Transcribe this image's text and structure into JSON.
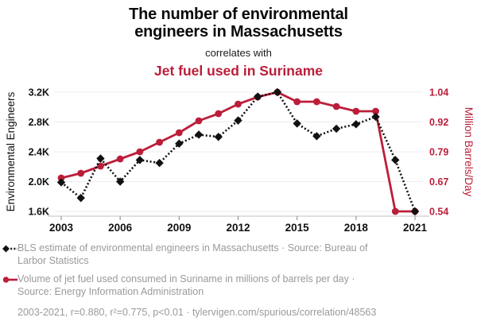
{
  "header": {
    "title_line1": "The number of environmental",
    "title_line2": "engineers in Massachusetts",
    "connector": "correlates with",
    "subtitle": "Jet fuel used in Suriname"
  },
  "colors": {
    "accent_red": "#bb1e3a",
    "series_black": "#111111",
    "legend_gray": "#9a9a9a",
    "grid": "#ededed",
    "axis_line": "#cccccc",
    "tick_mark": "#999999"
  },
  "chart_data": {
    "type": "line",
    "x": [
      2003,
      2004,
      2005,
      2006,
      2007,
      2008,
      2009,
      2010,
      2011,
      2012,
      2013,
      2014,
      2015,
      2016,
      2017,
      2018,
      2019,
      2020,
      2021
    ],
    "x_tick_labels": [
      "2003",
      "2006",
      "2009",
      "2012",
      "2015",
      "2018",
      "2021"
    ],
    "x_tick_years": [
      2003,
      2006,
      2009,
      2012,
      2015,
      2018,
      2021
    ],
    "series": [
      {
        "name": "BLS estimate of environmental engineers in Massachusetts",
        "axis": "left",
        "style": "dotted-diamond",
        "values": [
          1990,
          1780,
          2310,
          2000,
          2290,
          2250,
          2510,
          2630,
          2600,
          2820,
          3140,
          3200,
          2780,
          2610,
          2710,
          2770,
          2870,
          2290,
          1600
        ]
      },
      {
        "name": "Volume of jet fuel used consumed in Suriname",
        "axis": "right",
        "style": "solid-circle",
        "values": [
          0.68,
          0.7,
          0.73,
          0.76,
          0.79,
          0.83,
          0.87,
          0.92,
          0.95,
          0.99,
          1.02,
          1.04,
          1.0,
          1.0,
          0.98,
          0.96,
          0.96,
          0.54,
          0.54
        ]
      }
    ],
    "left_axis": {
      "label": "Environmental Engineers",
      "tick_labels": [
        "3.2K",
        "2.8K",
        "2.4K",
        "2.0K",
        "1.6K"
      ],
      "tick_values": [
        3200,
        2800,
        2400,
        2000,
        1600
      ],
      "range": [
        1600,
        3200
      ]
    },
    "right_axis": {
      "label": "Million Barrels/Day",
      "tick_labels": [
        "1.04",
        "0.92",
        "0.79",
        "0.67",
        "0.54"
      ],
      "tick_values": [
        1.04,
        0.92,
        0.79,
        0.67,
        0.54
      ],
      "range": [
        0.54,
        1.04
      ]
    },
    "grid": "horizontal-only",
    "legend_position": "bottom"
  },
  "legend": {
    "items": [
      {
        "icon": "black-diamond-dotted-line",
        "text": "BLS estimate of environmental engineers in Massachusetts · Source: Bureau of Larbor Statistics"
      },
      {
        "icon": "red-circle-solid-line",
        "text": "Volume of jet fuel used consumed in Suriname in millions of barrels per day · Source: Energy Information Administration"
      }
    ]
  },
  "footer": {
    "text": "2003-2021, r=0.880, r²=0.775, p<0.01 · tylervigen.com/spurious/correlation/48563"
  }
}
